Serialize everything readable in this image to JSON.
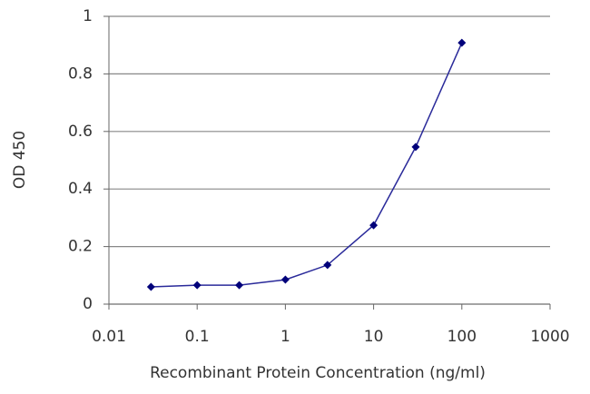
{
  "chart_data": {
    "type": "line",
    "x_label": "Recombinant Protein Concentration (ng/ml)",
    "y_label": "OD 450",
    "x": [
      0.03,
      0.1,
      0.3,
      1,
      3,
      10,
      30,
      100
    ],
    "values": [
      0.06,
      0.066,
      0.066,
      0.085,
      0.136,
      0.274,
      0.546,
      0.908
    ],
    "color": "#2a2a9a",
    "marker_color": "#00007a",
    "xscale": "log",
    "xlim": [
      0.01,
      1000
    ],
    "xticks": [
      0.01,
      0.1,
      1,
      10,
      100,
      1000
    ],
    "ylim": [
      0,
      1
    ],
    "yticks": [
      0,
      0.2,
      0.4,
      0.6,
      0.8,
      1
    ],
    "grid": true
  }
}
